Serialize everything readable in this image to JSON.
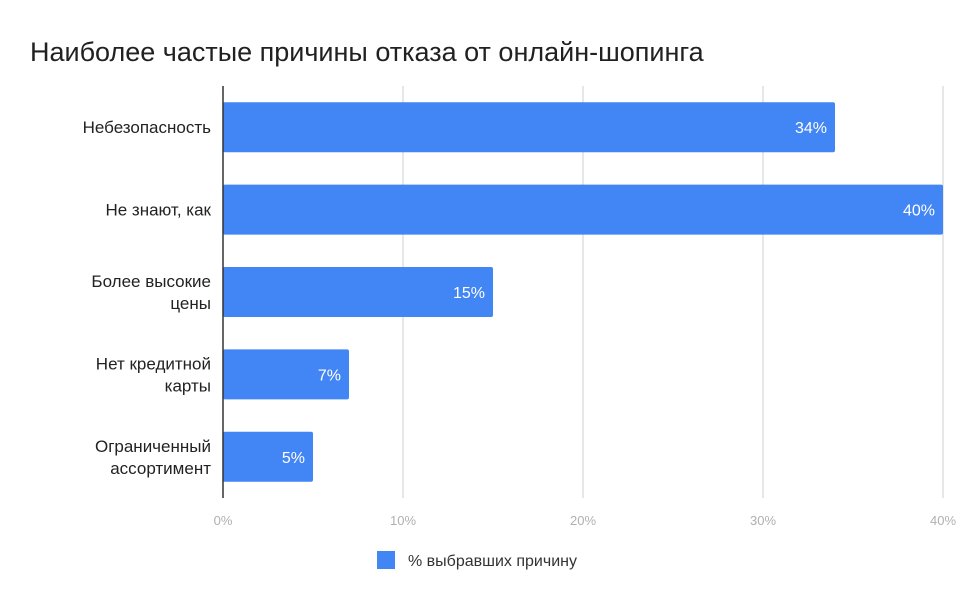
{
  "chart_data": {
    "type": "bar",
    "orientation": "horizontal",
    "title": "Наиболее частые причины отказа от онлайн-шопинга",
    "categories": [
      [
        "Небезопасность"
      ],
      [
        "Не знают, как"
      ],
      [
        "Более высокие",
        "цены"
      ],
      [
        "Нет кредитной",
        "карты"
      ],
      [
        "Ограниченный",
        "ассортимент"
      ]
    ],
    "series": [
      {
        "name": "% выбравших причину",
        "values": [
          34,
          40,
          15,
          7,
          5
        ],
        "labels": [
          "34%",
          "40%",
          "15%",
          "7%",
          "5%"
        ],
        "color": "#4285f4"
      }
    ],
    "xlim": [
      0,
      40
    ],
    "ticks": [
      0,
      10,
      20,
      30,
      40
    ],
    "tick_labels": [
      "0%",
      "10%",
      "20%",
      "30%",
      "40%"
    ],
    "grid": true,
    "legend_position": "bottom"
  }
}
